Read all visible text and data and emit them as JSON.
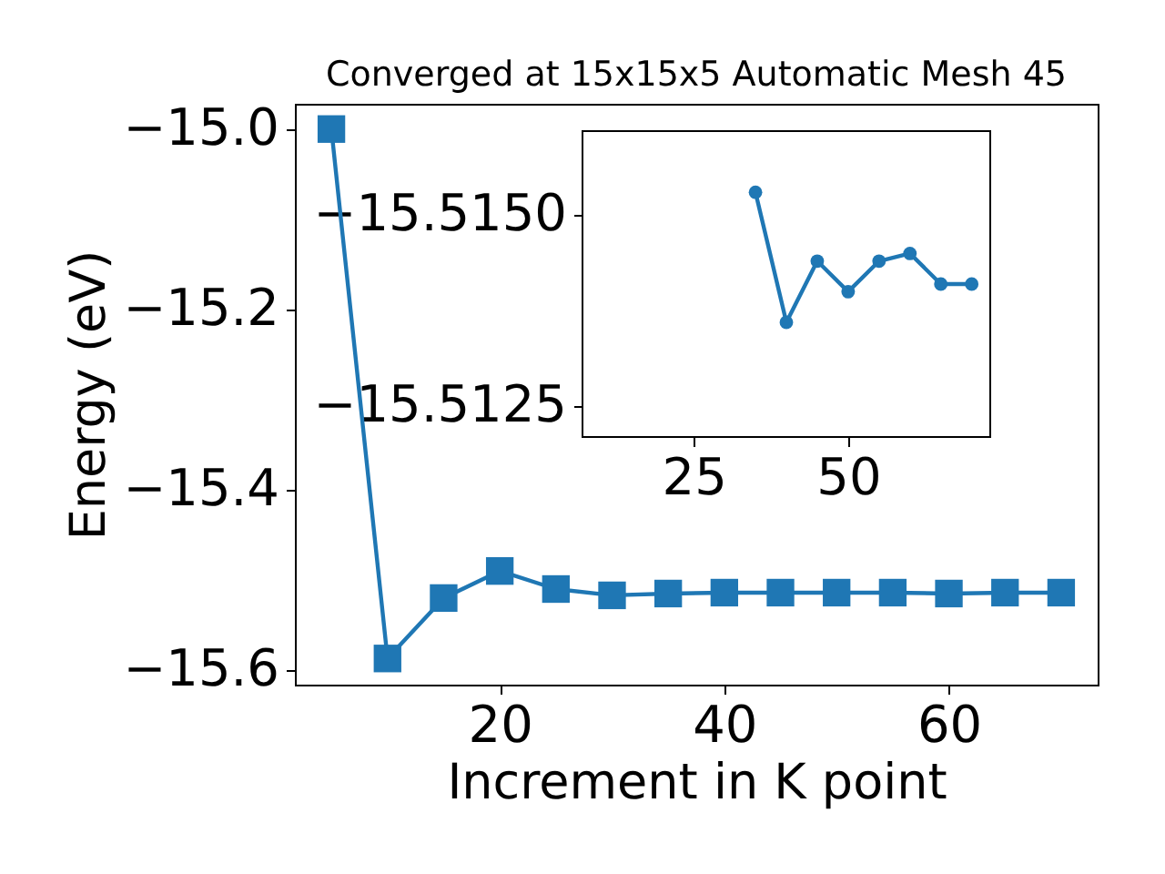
{
  "chart_data": [
    {
      "type": "line",
      "title": "Converged at 15x15x5 Automatic Mesh 45",
      "xlabel": "Increment in K point",
      "ylabel": "Energy (eV)",
      "x": [
        5,
        10,
        15,
        20,
        25,
        30,
        35,
        40,
        45,
        50,
        55,
        60,
        65,
        70
      ],
      "series": [
        {
          "color": "#1f77b4",
          "values": [
            -15.0,
            -15.587,
            -15.52,
            -15.49,
            -15.51,
            -15.517,
            -15.515,
            -15.514,
            -15.514,
            -15.514,
            -15.514,
            -15.515,
            -15.514,
            -15.514
          ]
        }
      ],
      "marker": "square",
      "line_style": "solid",
      "grid": false,
      "xlim": [
        1.75,
        73.25
      ],
      "ylim": [
        -15.616,
        -14.972
      ],
      "xticks": [
        20,
        40,
        60
      ],
      "yticks": [
        {
          "value": -15.0,
          "label": "−15.0"
        },
        {
          "value": -15.2,
          "label": "−15.2"
        },
        {
          "value": -15.4,
          "label": "−15.4"
        },
        {
          "value": -15.6,
          "label": "−15.6"
        }
      ]
    },
    {
      "type": "line",
      "x": [
        35,
        40,
        45,
        50,
        55,
        60,
        65,
        70
      ],
      "series": [
        {
          "color": "#1f77b4",
          "values": [
            -15.5153,
            -15.5136,
            -15.5144,
            -15.514,
            -15.5144,
            -15.5145,
            -15.5141,
            -15.5141
          ]
        }
      ],
      "marker": "circle",
      "line_style": "solid",
      "grid": false,
      "xlim": [
        7,
        73
      ],
      "ylim": [
        -15.5121,
        -15.5161
      ],
      "xticks": [
        25,
        50
      ],
      "yticks": [
        {
          "value": -15.515,
          "label": "−15.5150"
        },
        {
          "value": -15.5125,
          "label": "−15.5125"
        }
      ]
    }
  ]
}
